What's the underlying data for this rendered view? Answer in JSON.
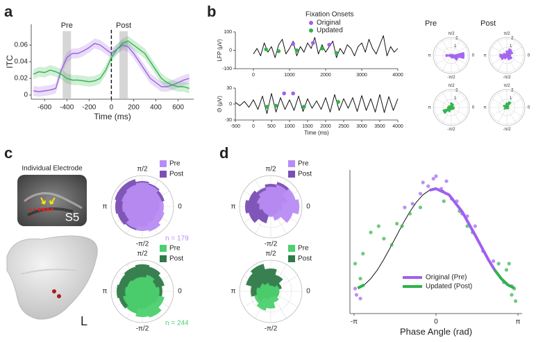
{
  "figure": {
    "panel_labels": [
      "a",
      "b",
      "c",
      "d"
    ],
    "electrode_title": "Individual Electrode",
    "subject": "S5",
    "hemisphere": "L"
  },
  "chart_data": [
    {
      "type": "line",
      "xlabel": "Time (ms)",
      "ylabel": "ITC",
      "xlim": [
        -720,
        740
      ],
      "ylim": [
        -0.005,
        0.085
      ],
      "xticks": [
        -600,
        -400,
        -200,
        0,
        200,
        400,
        600
      ],
      "yticks": [
        0,
        0.02,
        0.04,
        0.06
      ],
      "x": [
        -700,
        -650,
        -600,
        -550,
        -500,
        -450,
        -400,
        -350,
        -300,
        -250,
        -200,
        -150,
        -100,
        -50,
        0,
        50,
        100,
        150,
        200,
        250,
        300,
        350,
        400,
        450,
        500,
        550,
        600,
        650,
        700
      ],
      "annotations": [
        {
          "text": "Pre",
          "x": -400
        },
        {
          "text": "Post",
          "x": 110
        }
      ],
      "series": [
        {
          "color": "#9d5fe0",
          "error": 0.006,
          "values": [
            0.005,
            0.004,
            0.005,
            0.006,
            0.008,
            0.03,
            0.045,
            0.05,
            0.05,
            0.053,
            0.057,
            0.062,
            0.06,
            0.055,
            0.05,
            0.055,
            0.06,
            0.058,
            0.05,
            0.04,
            0.03,
            0.02,
            0.015,
            0.01,
            0.01,
            0.012,
            0.015,
            0.018,
            0.02
          ]
        },
        {
          "color": "#2db34a",
          "error": 0.006,
          "values": [
            0.025,
            0.028,
            0.027,
            0.03,
            0.028,
            0.025,
            0.02,
            0.018,
            0.018,
            0.017,
            0.016,
            0.017,
            0.02,
            0.03,
            0.045,
            0.055,
            0.062,
            0.065,
            0.06,
            0.055,
            0.05,
            0.04,
            0.03,
            0.02,
            0.015,
            0.012,
            0.01,
            0.01,
            0.008
          ]
        }
      ]
    },
    {
      "type": "line",
      "ylabel": "LFP (μV)",
      "xlim": [
        -500,
        4000
      ],
      "ylim": [
        -100,
        100
      ],
      "xticks": [
        0,
        1000,
        2000,
        3000,
        4000
      ],
      "yticks": [
        -100,
        0,
        100
      ],
      "legend_title": "Fixation Onsets",
      "series": [
        {
          "color": "#111111",
          "x": [
            0,
            100,
            200,
            300,
            400,
            500,
            600,
            700,
            800,
            900,
            1000,
            1100,
            1200,
            1300,
            1400,
            1500,
            1600,
            1700,
            1800,
            1900,
            2000,
            2100,
            2200,
            2300,
            2400,
            2500,
            2600,
            2700,
            2800,
            2900,
            3000,
            3100,
            3200,
            3300,
            3400,
            3500,
            3600,
            3700,
            3800,
            3900,
            4000
          ],
          "values": [
            -20,
            10,
            -30,
            40,
            -10,
            20,
            -40,
            30,
            60,
            -20,
            10,
            50,
            -30,
            20,
            -10,
            40,
            10,
            70,
            -20,
            30,
            -10,
            20,
            50,
            -40,
            10,
            -20,
            30,
            10,
            -30,
            20,
            40,
            -10,
            60,
            10,
            -20,
            30,
            80,
            -30,
            20,
            -10,
            10
          ]
        },
        {
          "name": "Original",
          "color": "#a05ff0",
          "kind": "scatter",
          "x": [
            1100,
            1650,
            2100
          ],
          "values": [
            35,
            40,
            30
          ]
        },
        {
          "name": "Updated",
          "color": "#2db34a",
          "kind": "scatter",
          "x": [
            350,
            700,
            1200,
            1900,
            2300
          ],
          "values": [
            5,
            -5,
            0,
            10,
            -15
          ]
        }
      ]
    },
    {
      "type": "line",
      "xlabel": "Time (ms)",
      "ylabel": "Θ (μV)",
      "xlim": [
        -500,
        4000
      ],
      "ylim": [
        -30,
        30
      ],
      "xticks": [
        -500,
        0,
        500,
        1000,
        1500,
        2000,
        2500,
        3000,
        3500,
        4000
      ],
      "yticks": [
        -30,
        0,
        30
      ],
      "series": [
        {
          "color": "#111111",
          "x": [
            -500,
            -375,
            -250,
            -125,
            0,
            125,
            250,
            375,
            500,
            625,
            750,
            875,
            1000,
            1125,
            1250,
            1375,
            1500,
            1625,
            1750,
            1875,
            2000,
            2125,
            2250,
            2375,
            2500,
            2625,
            2750,
            2875,
            3000,
            3125,
            3250,
            3375,
            3500,
            3625,
            3750,
            3875,
            4000
          ],
          "values": [
            3,
            -3,
            5,
            -6,
            8,
            -10,
            15,
            -18,
            20,
            -15,
            12,
            -10,
            8,
            -12,
            15,
            -14,
            10,
            -8,
            6,
            -10,
            12,
            -15,
            18,
            -12,
            10,
            -8,
            12,
            -14,
            16,
            -12,
            10,
            -15,
            18,
            -16,
            14,
            -12,
            10
          ]
        },
        {
          "color": "#a05ff0",
          "kind": "scatter",
          "x": [
            850,
            1100
          ],
          "values": [
            20,
            20
          ]
        },
        {
          "color": "#2db34a",
          "kind": "scatter",
          "x": [
            380,
            620,
            1400,
            2350
          ],
          "values": [
            -5,
            -3,
            -5,
            4
          ]
        }
      ]
    },
    {
      "type": "polar_bar",
      "title": "Pre",
      "rlim": [
        0,
        2.2
      ],
      "rticks": [
        1,
        2
      ],
      "angle_ticks": [
        {
          "value": 1.5708,
          "label": "π/2"
        },
        {
          "value": 3.1416,
          "label": "π"
        },
        {
          "value": 0,
          "label": "0"
        },
        {
          "value": -1.5708,
          "label": "-π/2"
        }
      ],
      "series": [
        {
          "color": "#a05ff0",
          "values": [
            1.6,
            0.3,
            0.2,
            0.1,
            0.2,
            0.3,
            0.7,
            0.3,
            0.2,
            0.3,
            0.4,
            0.9
          ]
        }
      ]
    },
    {
      "type": "polar_bar",
      "title": "Post",
      "rlim": [
        0,
        2.2
      ],
      "rticks": [
        1,
        2
      ],
      "angle_ticks": [
        {
          "value": 1.5708,
          "label": "π/2"
        },
        {
          "value": 3.1416,
          "label": "π"
        },
        {
          "value": 0,
          "label": "0"
        },
        {
          "value": -1.5708,
          "label": "-π/2"
        }
      ],
      "series": [
        {
          "color": "#a05ff0",
          "values": [
            0.5,
            0.8,
            0.9,
            0.6,
            0.3,
            0.5,
            0.9,
            0.8,
            0.5,
            0.3,
            0.6,
            0.7
          ]
        }
      ]
    },
    {
      "type": "polar_bar",
      "rlim": [
        0,
        2.2
      ],
      "rticks": [
        1,
        2
      ],
      "angle_ticks": [
        {
          "value": 1.5708,
          "label": "π/2"
        },
        {
          "value": 3.1416,
          "label": "π"
        },
        {
          "value": 0,
          "label": "0"
        },
        {
          "value": -1.5708,
          "label": "-π/2"
        }
      ],
      "series": [
        {
          "color": "#2db34a",
          "values": [
            0.4,
            0.3,
            0.5,
            0.6,
            0.3,
            0.4,
            0.5,
            1.1,
            0.6,
            0.3,
            0.3,
            0.4
          ]
        }
      ]
    },
    {
      "type": "polar_bar",
      "rlim": [
        0,
        2.2
      ],
      "rticks": [
        1,
        2
      ],
      "angle_ticks": [
        {
          "value": 1.5708,
          "label": "π/2"
        },
        {
          "value": 3.1416,
          "label": "π"
        },
        {
          "value": 0,
          "label": "0"
        },
        {
          "value": -1.5708,
          "label": "-π/2"
        }
      ],
      "series": [
        {
          "color": "#2db34a",
          "values": [
            0.2,
            0.3,
            0.8,
            0.6,
            0.4,
            0.5,
            0.3,
            0.4,
            0.2,
            0.2,
            0.2,
            0.3
          ]
        }
      ]
    },
    {
      "type": "polar_bar",
      "rlim": [
        0,
        1.1
      ],
      "annotation": "n = 179",
      "angle_ticks": [
        {
          "value": 1.5708,
          "label": "π/2"
        },
        {
          "value": 3.1416,
          "label": "π"
        },
        {
          "value": 0,
          "label": "0"
        },
        {
          "value": -1.5708,
          "label": "-π/2"
        }
      ],
      "series": [
        {
          "name": "Pre",
          "color": "#b98cf5",
          "values": [
            0.75,
            0.7,
            0.8,
            0.85,
            0.8,
            0.75,
            0.7,
            0.65,
            0.8,
            0.85,
            0.9,
            0.8
          ]
        },
        {
          "name": "Post",
          "color": "#7a4fb5",
          "values": [
            0.6,
            0.8,
            0.85,
            0.9,
            1.0,
            1.0,
            0.95,
            0.9,
            0.85,
            0.7,
            0.6,
            0.55
          ]
        }
      ]
    },
    {
      "type": "polar_bar",
      "rlim": [
        0,
        1.1
      ],
      "annotation": "n = 244",
      "angle_ticks": [
        {
          "value": 1.5708,
          "label": "π/2"
        },
        {
          "value": 3.1416,
          "label": "π"
        },
        {
          "value": 0,
          "label": "0"
        },
        {
          "value": -1.5708,
          "label": "-π/2"
        }
      ],
      "series": [
        {
          "name": "Pre",
          "color": "#4cd06e",
          "values": [
            0.6,
            0.5,
            0.6,
            0.5,
            0.5,
            0.55,
            0.6,
            0.7,
            0.8,
            0.9,
            0.95,
            0.8
          ]
        },
        {
          "name": "Post",
          "color": "#2f7a47",
          "values": [
            0.7,
            0.8,
            0.9,
            0.95,
            0.9,
            0.85,
            0.9,
            0.85,
            0.8,
            0.6,
            0.55,
            0.6
          ]
        }
      ]
    },
    {
      "type": "polar_bar",
      "rlim": [
        0,
        1.1
      ],
      "angle_ticks": [
        {
          "value": 1.5708,
          "label": "π/2"
        },
        {
          "value": 3.1416,
          "label": "π"
        },
        {
          "value": 0,
          "label": "0"
        },
        {
          "value": -1.5708,
          "label": "-π/2"
        }
      ],
      "series": [
        {
          "name": "Pre",
          "color": "#b98cf5",
          "values": [
            1.0,
            0.9,
            0.8,
            0.7,
            0.6,
            0.5,
            0.4,
            0.3,
            0.3,
            0.35,
            0.5,
            0.8
          ]
        },
        {
          "name": "Post",
          "color": "#7a4fb5",
          "values": [
            0.4,
            0.6,
            0.9,
            0.8,
            0.7,
            0.8,
            0.9,
            0.8,
            0.6,
            0.3,
            0.3,
            0.3
          ]
        }
      ]
    },
    {
      "type": "polar_bar",
      "rlim": [
        0,
        1.1
      ],
      "angle_ticks": [
        {
          "value": 1.5708,
          "label": "π/2"
        },
        {
          "value": 3.1416,
          "label": "π"
        },
        {
          "value": 0,
          "label": "0"
        },
        {
          "value": -1.5708,
          "label": "-π/2"
        }
      ],
      "series": [
        {
          "name": "Pre",
          "color": "#4cd06e",
          "values": [
            0.3,
            0.3,
            0.2,
            0.2,
            0.3,
            0.4,
            0.5,
            0.6,
            0.7,
            0.6,
            0.4,
            0.3
          ]
        },
        {
          "name": "Post",
          "color": "#2f7a47",
          "values": [
            0.3,
            0.4,
            0.6,
            0.8,
            1.0,
            0.9,
            0.7,
            0.5,
            0.3,
            0.2,
            0.2,
            0.3
          ]
        }
      ]
    },
    {
      "type": "scatter",
      "xlabel": "Phase Angle (rad)",
      "xlim": [
        -3.3,
        3.3
      ],
      "ylim": [
        -0.1,
        1.05
      ],
      "xticks": [
        {
          "value": -3.1416,
          "label": "-π"
        },
        0,
        {
          "value": 3.1416,
          "label": "π"
        }
      ],
      "series": [
        {
          "color": "#111111",
          "kind": "line",
          "x": [
            -3,
            -2.75,
            -2.5,
            -2.25,
            -2,
            -1.75,
            -1.5,
            -1.25,
            -1,
            -0.75,
            -0.5,
            -0.25,
            0,
            0.25,
            0.5,
            0.75,
            1,
            1.25,
            1.5,
            1.75,
            2,
            2.25,
            2.5,
            2.75,
            3
          ],
          "values": [
            0.104,
            0.13,
            0.18,
            0.249,
            0.334,
            0.429,
            0.528,
            0.626,
            0.716,
            0.793,
            0.851,
            0.888,
            0.9,
            0.888,
            0.851,
            0.793,
            0.716,
            0.626,
            0.528,
            0.429,
            0.334,
            0.249,
            0.18,
            0.13,
            0.104
          ]
        },
        {
          "color": "#a05ff0",
          "x": [
            -3.1,
            -3.05,
            -2.9,
            -1.2,
            -0.9,
            -0.6,
            -0.5,
            -0.3,
            -0.1,
            0,
            0.2,
            0.4,
            0.6,
            0.8,
            1.0,
            1.2,
            1.5,
            1.8,
            2.2,
            2.6,
            2.9
          ],
          "values": [
            0.1,
            0.05,
            0.02,
            0.75,
            0.78,
            0.86,
            0.95,
            0.92,
            0.98,
            1.0,
            0.9,
            0.96,
            0.82,
            0.8,
            0.7,
            0.68,
            0.6,
            0.4,
            0.32,
            0.15,
            0.12
          ]
        },
        {
          "color": "#2db34a",
          "x": [
            -3.1,
            -2.9,
            -2.8,
            -2.5,
            -2.2,
            -2,
            -1.7,
            -1.5,
            -1.3,
            -1,
            -0.6,
            0.3,
            0.9,
            1.2,
            1.4,
            2.4,
            2.7,
            2.8,
            2.9,
            3.0,
            3.05
          ],
          "values": [
            0.3,
            0.18,
            0.38,
            0.55,
            0.6,
            0.5,
            0.45,
            0.62,
            0.6,
            0.7,
            0.75,
            0.8,
            0.72,
            0.6,
            0.55,
            0.3,
            0.25,
            0.3,
            0.05,
            0.1,
            0.0
          ]
        },
        {
          "name": "Original (Pre)",
          "color": "#a05ff0",
          "kind": "line",
          "width": 4,
          "x": [
            -0.25,
            0,
            0.5,
            1,
            1.5,
            2,
            2.25
          ],
          "values": [
            0.888,
            0.9,
            0.851,
            0.716,
            0.528,
            0.334,
            0.249
          ]
        },
        {
          "name": "Updated (Post)",
          "color": "#2db34a",
          "kind": "line",
          "width": 4,
          "x": [
            -3,
            -2.75,
            -2.5,
            2.25,
            2.5,
            2.75,
            3
          ],
          "values": [
            0.104,
            0.13,
            null,
            0.249,
            0.18,
            0.13,
            0.104
          ]
        }
      ]
    }
  ]
}
